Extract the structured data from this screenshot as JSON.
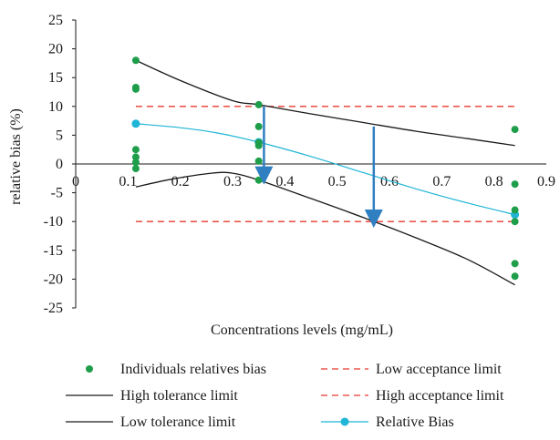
{
  "chart_data": {
    "type": "scatter",
    "title": "",
    "xlabel": "Concentrations levels (mg/mL)",
    "ylabel": "relative bias (%)",
    "xlim": [
      0,
      0.9
    ],
    "ylim": [
      -25,
      25
    ],
    "x_ticks": [
      0,
      0.1,
      0.2,
      0.3,
      0.4,
      0.5,
      0.6,
      0.7,
      0.8,
      0.9
    ],
    "x_tick_labels": [
      "0",
      "0.1",
      "0.2",
      "0.3",
      "0.4",
      "0.5",
      "0.6",
      "0.7",
      "0.8",
      "0.9"
    ],
    "y_ticks": [
      -25,
      -20,
      -15,
      -10,
      -5,
      0,
      5,
      10,
      15,
      20,
      25
    ],
    "y_tick_labels": [
      "-25",
      "-20",
      "-15",
      "-10",
      "-5",
      "0",
      "5",
      "10",
      "15",
      "20",
      "25"
    ],
    "grid": false,
    "legend_position": "bottom",
    "series": [
      {
        "name": "Individuals relatives bias",
        "kind": "points",
        "color": "#1e9e4a",
        "points": [
          {
            "x": 0.115,
            "y": 18.0
          },
          {
            "x": 0.115,
            "y": 13.3
          },
          {
            "x": 0.115,
            "y": 13.0
          },
          {
            "x": 0.115,
            "y": 2.5
          },
          {
            "x": 0.115,
            "y": 1.2
          },
          {
            "x": 0.115,
            "y": 0.3
          },
          {
            "x": 0.115,
            "y": -0.8
          },
          {
            "x": 0.35,
            "y": 10.3
          },
          {
            "x": 0.35,
            "y": 6.5
          },
          {
            "x": 0.35,
            "y": 3.7
          },
          {
            "x": 0.35,
            "y": 3.2
          },
          {
            "x": 0.35,
            "y": 0.5
          },
          {
            "x": 0.35,
            "y": -2.8
          },
          {
            "x": 0.84,
            "y": 6.0
          },
          {
            "x": 0.84,
            "y": -3.5
          },
          {
            "x": 0.84,
            "y": -8.0
          },
          {
            "x": 0.84,
            "y": -10.0
          },
          {
            "x": 0.84,
            "y": -17.3
          },
          {
            "x": 0.84,
            "y": -19.5
          }
        ]
      },
      {
        "name": "High tolerance limit",
        "kind": "line",
        "color": "#1a1a1a",
        "points": [
          {
            "x": 0.115,
            "y": 18.0
          },
          {
            "x": 0.2,
            "y": 14.5
          },
          {
            "x": 0.3,
            "y": 11.0
          },
          {
            "x": 0.35,
            "y": 10.3
          },
          {
            "x": 0.45,
            "y": 8.7
          },
          {
            "x": 0.55,
            "y": 7.2
          },
          {
            "x": 0.65,
            "y": 5.7
          },
          {
            "x": 0.75,
            "y": 4.4
          },
          {
            "x": 0.84,
            "y": 3.2
          }
        ]
      },
      {
        "name": "Low tolerance limit",
        "kind": "line",
        "color": "#1a1a1a",
        "points": [
          {
            "x": 0.115,
            "y": -4.0
          },
          {
            "x": 0.18,
            "y": -2.7
          },
          {
            "x": 0.26,
            "y": -1.6
          },
          {
            "x": 0.3,
            "y": -1.6
          },
          {
            "x": 0.35,
            "y": -2.8
          },
          {
            "x": 0.45,
            "y": -6.0
          },
          {
            "x": 0.55,
            "y": -9.3
          },
          {
            "x": 0.65,
            "y": -12.8
          },
          {
            "x": 0.75,
            "y": -16.6
          },
          {
            "x": 0.84,
            "y": -21.0
          }
        ]
      },
      {
        "name": "Low acceptance limit",
        "kind": "dashed",
        "color": "#e8392c",
        "points": [
          {
            "x": 0.115,
            "y": -10
          },
          {
            "x": 0.84,
            "y": -10
          }
        ]
      },
      {
        "name": "High acceptance limit",
        "kind": "dashed",
        "color": "#e8392c",
        "points": [
          {
            "x": 0.115,
            "y": 10
          },
          {
            "x": 0.84,
            "y": 10
          }
        ]
      },
      {
        "name": "Relative Bias",
        "kind": "line-markers",
        "color": "#1fb5d6",
        "points": [
          {
            "x": 0.115,
            "y": 7.0
          },
          {
            "x": 0.2,
            "y": 6.3
          },
          {
            "x": 0.27,
            "y": 5.4
          },
          {
            "x": 0.35,
            "y": 3.8
          },
          {
            "x": 0.45,
            "y": 1.3
          },
          {
            "x": 0.55,
            "y": -1.5
          },
          {
            "x": 0.65,
            "y": -4.3
          },
          {
            "x": 0.75,
            "y": -6.8
          },
          {
            "x": 0.84,
            "y": -8.8
          }
        ],
        "markers": [
          {
            "x": 0.115,
            "y": 7.0
          },
          {
            "x": 0.35,
            "y": 3.8
          },
          {
            "x": 0.84,
            "y": -8.8
          }
        ]
      }
    ],
    "annotations": [
      {
        "type": "arrow",
        "color": "#2f7fc1",
        "from": {
          "x": 0.36,
          "y": 10.0
        },
        "to": {
          "x": 0.36,
          "y": -2.0
        }
      },
      {
        "type": "arrow",
        "color": "#2f7fc1",
        "from": {
          "x": 0.57,
          "y": 6.5
        },
        "to": {
          "x": 0.57,
          "y": -9.5
        }
      }
    ]
  }
}
